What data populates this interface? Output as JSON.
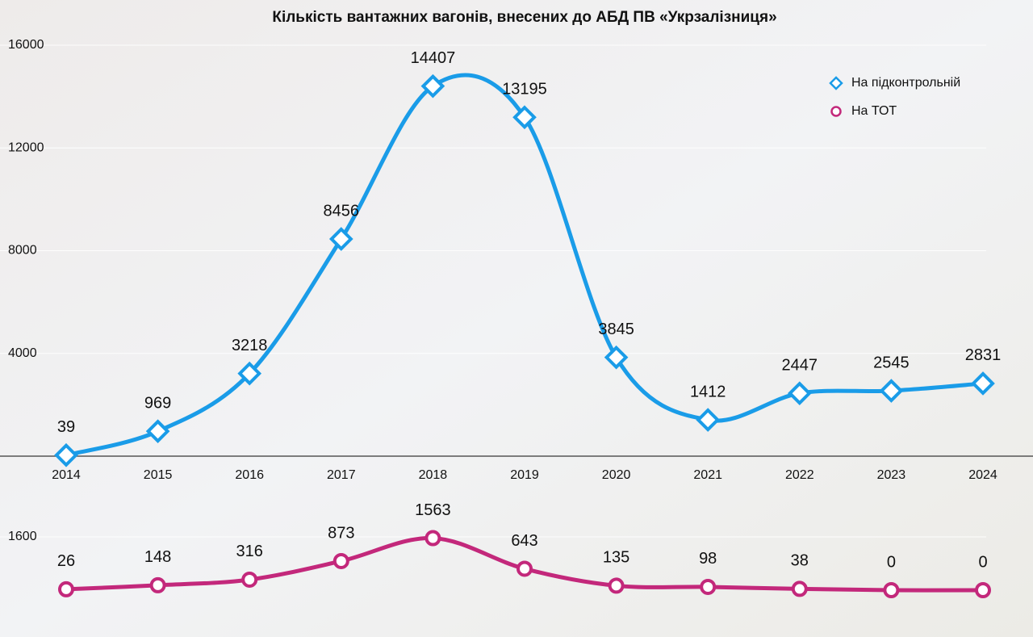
{
  "chart_data": [
    {
      "type": "line",
      "title": "Кількість вантажних вагонів, внесених до АБД ПВ «Укрзалізниця»",
      "categories": [
        "2014",
        "2015",
        "2016",
        "2017",
        "2018",
        "2019",
        "2020",
        "2021",
        "2022",
        "2023",
        "2024"
      ],
      "series": [
        {
          "name": "На підконтрольній",
          "color": "#1a9ce8",
          "values": [
            39,
            969,
            3218,
            8456,
            14407,
            13195,
            3845,
            1412,
            2447,
            2545,
            2831
          ]
        }
      ],
      "ylim": [
        0,
        16000
      ],
      "yticks": [
        4000,
        8000,
        12000,
        16000
      ],
      "grid": true,
      "legend": "upper right"
    },
    {
      "type": "line",
      "series": [
        {
          "name": "На ТОТ",
          "color": "#c3287b",
          "values": [
            26,
            148,
            316,
            873,
            1563,
            643,
            135,
            98,
            38,
            0,
            0
          ]
        }
      ],
      "ylim": [
        0,
        1600
      ],
      "yticks": [
        1600
      ],
      "grid": true
    }
  ]
}
